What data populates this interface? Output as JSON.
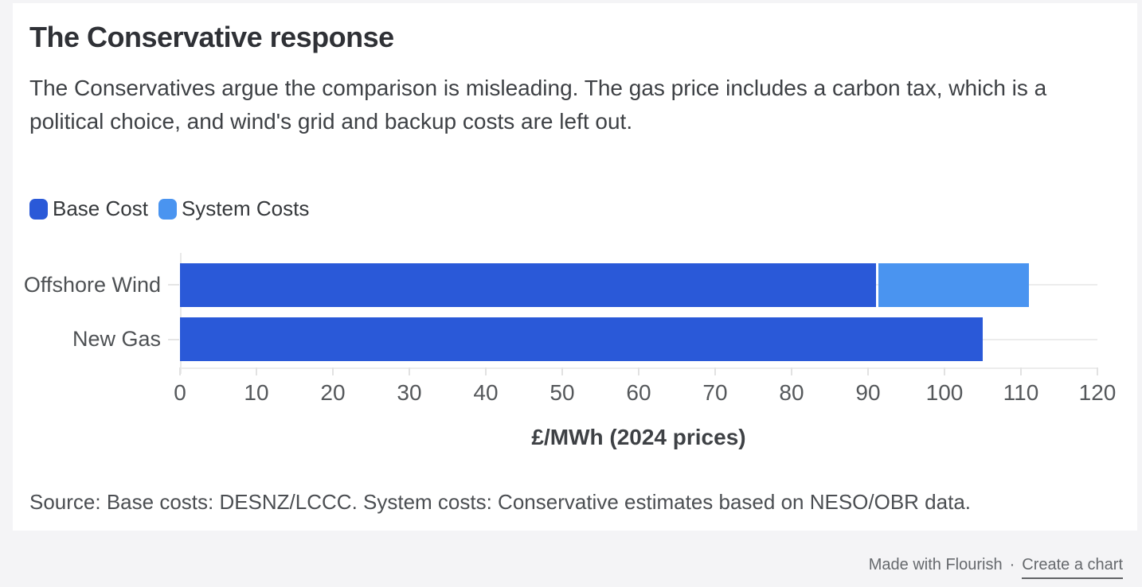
{
  "header": {
    "title": "The Conservative response",
    "subtitle": "The Conservatives argue the comparison is misleading. The gas price includes a carbon tax, which is a political choice, and wind's grid and backup costs are left out."
  },
  "legend": {
    "items": [
      {
        "label": "Base Cost",
        "color": "#2a59d8"
      },
      {
        "label": "System Costs",
        "color": "#4a94f0"
      }
    ]
  },
  "chart_data": {
    "type": "bar",
    "orientation": "horizontal",
    "stacked": true,
    "categories": [
      "Offshore Wind",
      "New Gas"
    ],
    "series": [
      {
        "name": "Base Cost",
        "color": "#2a59d8",
        "values": [
          91,
          105
        ]
      },
      {
        "name": "System Costs",
        "color": "#4a94f0",
        "values": [
          20,
          0
        ]
      }
    ],
    "xlabel": "£/MWh (2024 prices)",
    "xlim": [
      0,
      120
    ],
    "x_ticks": [
      0,
      10,
      20,
      30,
      40,
      50,
      60,
      70,
      80,
      90,
      100,
      110,
      120
    ],
    "grid": "row-center-lines",
    "legend_position": "top-left"
  },
  "source": {
    "text": "Source: Base costs: DESNZ/LCCC. System costs: Conservative estimates based on NESO/OBR data."
  },
  "footer": {
    "made_with": "Made with Flourish",
    "separator": "·",
    "link": "Create a chart"
  },
  "colors": {
    "page_background": "#f4f4f6",
    "card_background": "#ffffff",
    "gridline": "#ececec",
    "base_cost": "#2a59d8",
    "system_costs": "#4a94f0"
  }
}
